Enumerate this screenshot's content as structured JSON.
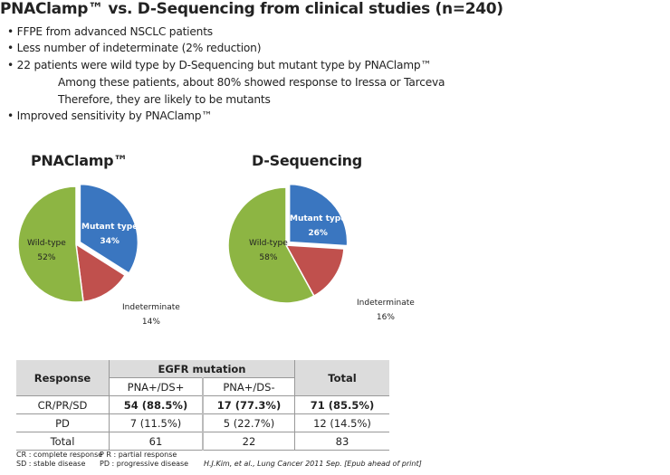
{
  "title": "PNAClamp™ vs. D-Sequencing from clinical studies (n=240)",
  "bullets": [
    "• FFPE from advanced NSCLC patients",
    "• Less number of indeterminate (2% reduction)",
    "• 22 patients were wild type by D-Sequencing but mutant type by PNAClamp™",
    "Among these patients, about 80% showed response to Iressa or Tarceva",
    "Therefore, they are likely to be mutants",
    "• Improved sensitivity by PNAClamp™"
  ],
  "chart_data": [
    {
      "type": "pie",
      "title": "PNAClamp™",
      "slices": [
        {
          "label": "Mutant type",
          "value": 34,
          "text": "34%",
          "color": "#3a76c0"
        },
        {
          "label": "Indeterminate",
          "value": 14,
          "text": "14%",
          "color": "#c0504d"
        },
        {
          "label": "Wild-type",
          "value": 52,
          "text": "52%",
          "color": "#8db543"
        }
      ]
    },
    {
      "type": "pie",
      "title": "D-Sequencing",
      "slices": [
        {
          "label": "Mutant type",
          "value": 26,
          "text": "26%",
          "color": "#3a76c0"
        },
        {
          "label": "Indeterminate",
          "value": 16,
          "text": "16%",
          "color": "#c0504d"
        },
        {
          "label": "Wild-type",
          "value": 58,
          "text": "58%",
          "color": "#8db543"
        }
      ]
    }
  ],
  "table": {
    "h_response": "Response",
    "h_egfr": "EGFR mutation",
    "h_total": "Total",
    "h_c1": "PNA+/DS+",
    "h_c2": "PNA+/DS-",
    "rows": [
      [
        "CR/PR/SD",
        "54 (88.5%)",
        "17 (77.3%)",
        "71 (85.5%)"
      ],
      [
        "PD",
        "7 (11.5%)",
        "5 (22.7%)",
        "12 (14.5%)"
      ],
      [
        "Total",
        "61",
        "22",
        "83"
      ]
    ]
  },
  "footnotes": {
    "cr": "CR : complete response",
    "pr": "P R : partial response",
    "sd": "SD : stable disease",
    "pd": "PD : progressive disease",
    "cite": "H.J.Kim, et al., Lung Cancer 2011 Sep. [Epub ahead of print]"
  }
}
